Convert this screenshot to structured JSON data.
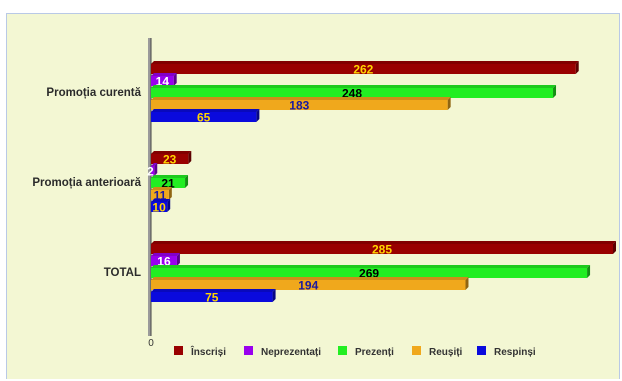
{
  "chart_data": {
    "type": "bar",
    "orientation": "horizontal",
    "categories": [
      "Promoția curentă",
      "Promoția anterioară",
      "TOTAL"
    ],
    "series": [
      {
        "name": "Înscriși",
        "values": [
          262,
          23,
          285
        ],
        "color": "#990000",
        "label_color": "#ffd400"
      },
      {
        "name": "Neprezentați",
        "values": [
          14,
          2,
          16
        ],
        "color": "#9900ee",
        "label_color": "#ffffff"
      },
      {
        "name": "Prezenți",
        "values": [
          248,
          21,
          269
        ],
        "color": "#22ee22",
        "label_color": "#000000"
      },
      {
        "name": "Reușiți",
        "values": [
          183,
          11,
          194
        ],
        "color": "#f0a81c",
        "label_color": "#1a1aa0"
      },
      {
        "name": "Respinși",
        "values": [
          65,
          10,
          75
        ],
        "color": "#0a0add",
        "label_color": "#ffd400"
      }
    ],
    "xlim": [
      0,
      285
    ],
    "x_ticks": [
      0
    ],
    "legend_position": "bottom",
    "grid": false
  }
}
